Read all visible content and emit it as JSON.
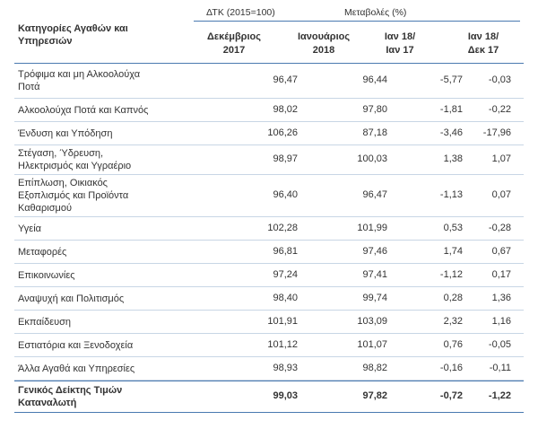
{
  "header": {
    "category_line1": "Κατηγορίες Αγαθών και",
    "category_line2": "Υπηρεσιών",
    "dtk_group": "ΔΤΚ (2015=100)",
    "changes_group": "Μεταβολές (%)",
    "col1_line1": "Δεκέμβριος",
    "col1_line2": "2017",
    "col2_line1": "Ιανουάριος",
    "col2_line2": "2018",
    "col3_line1": "Ιαν 18/",
    "col3_line2": "Ιαν 17",
    "col4_line1": "Ιαν 18/",
    "col4_line2": "Δεκ 17"
  },
  "rows": [
    {
      "label": [
        "Τρόφιμα και μη Αλκοολούχα",
        "Ποτά"
      ],
      "dec17": "96,47",
      "jan18": "96,44",
      "yoy": "-5,77",
      "mom": "-0,03"
    },
    {
      "label": [
        "Αλκοολούχα Ποτά και Καπνός"
      ],
      "dec17": "98,02",
      "jan18": "97,80",
      "yoy": "-1,81",
      "mom": "-0,22"
    },
    {
      "label": [
        "Ένδυση και Υπόδηση"
      ],
      "dec17": "106,26",
      "jan18": "87,18",
      "yoy": "-3,46",
      "mom": "-17,96"
    },
    {
      "label": [
        "Στέγαση, Ύδρευση,",
        "Ηλεκτρισμός και Υγραέριο"
      ],
      "dec17": "98,97",
      "jan18": "100,03",
      "yoy": "1,38",
      "mom": "1,07"
    },
    {
      "label": [
        "Επίπλωση, Οικιακός",
        "Εξοπλισμός και Προϊόντα",
        "Καθαρισμού"
      ],
      "dec17": "96,40",
      "jan18": "96,47",
      "yoy": "-1,13",
      "mom": "0,07"
    },
    {
      "label": [
        "Υγεία"
      ],
      "dec17": "102,28",
      "jan18": "101,99",
      "yoy": "0,53",
      "mom": "-0,28"
    },
    {
      "label": [
        "Μεταφορές"
      ],
      "dec17": "96,81",
      "jan18": "97,46",
      "yoy": "1,74",
      "mom": "0,67"
    },
    {
      "label": [
        "Επικοινωνίες"
      ],
      "dec17": "97,24",
      "jan18": "97,41",
      "yoy": "-1,12",
      "mom": "0,17"
    },
    {
      "label": [
        "Αναψυχή και Πολιτισμός"
      ],
      "dec17": "98,40",
      "jan18": "99,74",
      "yoy": "0,28",
      "mom": "1,36"
    },
    {
      "label": [
        "Εκπαίδευση"
      ],
      "dec17": "101,91",
      "jan18": "103,09",
      "yoy": "2,32",
      "mom": "1,16"
    },
    {
      "label": [
        "Εστιατόρια και Ξενοδοχεία"
      ],
      "dec17": "101,12",
      "jan18": "101,07",
      "yoy": "0,76",
      "mom": "-0,05"
    },
    {
      "label": [
        "Άλλα Αγαθά και Υπηρεσίες"
      ],
      "dec17": "98,93",
      "jan18": "98,82",
      "yoy": "-0,16",
      "mom": "-0,11"
    }
  ],
  "total": {
    "label": [
      "Γενικός Δείκτης Τιμών",
      "Καταναλωτή"
    ],
    "dec17": "99,03",
    "jan18": "97,82",
    "yoy": "-0,72",
    "mom": "-1,22"
  }
}
